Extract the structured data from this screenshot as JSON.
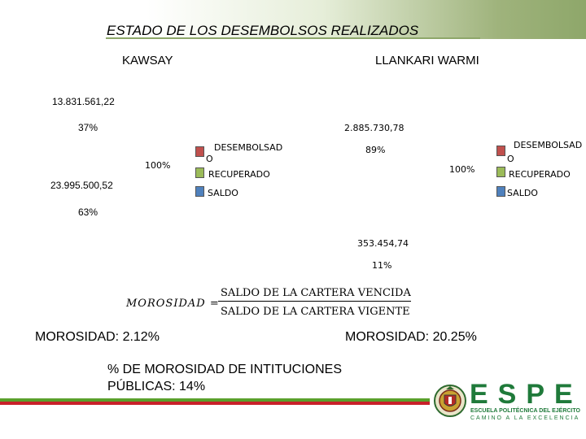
{
  "title": "ESTADO DE LOS DESEMBOLSOS REALIZADOS",
  "left": {
    "heading": "KAWSAY",
    "recuperado_value": "13.831.561,22",
    "recuperado_pct": "37%",
    "total_pct": "100%",
    "saldo_value": "23.995.500,52",
    "saldo_pct": "63%",
    "morosidad": "MOROSIDAD: 2.12%"
  },
  "right": {
    "heading": "LLANKARI WARMI",
    "recuperado_value": "2.885.730,78",
    "recuperado_pct": "89%",
    "total_pct": "100%",
    "saldo_value": "353.454,74",
    "saldo_pct": "11%",
    "morosidad": "MOROSIDAD: 20.25%"
  },
  "legend": {
    "items": [
      {
        "label_line1": "DESEMBOLSAD",
        "label_line2": "O",
        "color": "#c0504d"
      },
      {
        "label": "RECUPERADO",
        "color": "#9bbb59"
      },
      {
        "label": "SALDO",
        "color": "#4f81bd"
      }
    ]
  },
  "formula": {
    "variable": "MOROSIDAD =",
    "numerator": "SALDO DE LA CARTERA VENCIDA",
    "denominator": "SALDO DE LA CARTERA VIGENTE"
  },
  "footer": {
    "line1": "% DE MOROSIDAD DE  INTITUCIONES",
    "line2": "PÚBLICAS: 14%"
  },
  "logo": {
    "letters": "ESPE",
    "subtitle": "ESCUELA POLITÉCNICA DEL EJÉRCITO",
    "motto": "CAMINO A LA EXCELENCIA"
  },
  "colors": {
    "accent_green": "#8ea76a",
    "stripe_green": "#5aa02c",
    "stripe_red": "#c8202a"
  }
}
